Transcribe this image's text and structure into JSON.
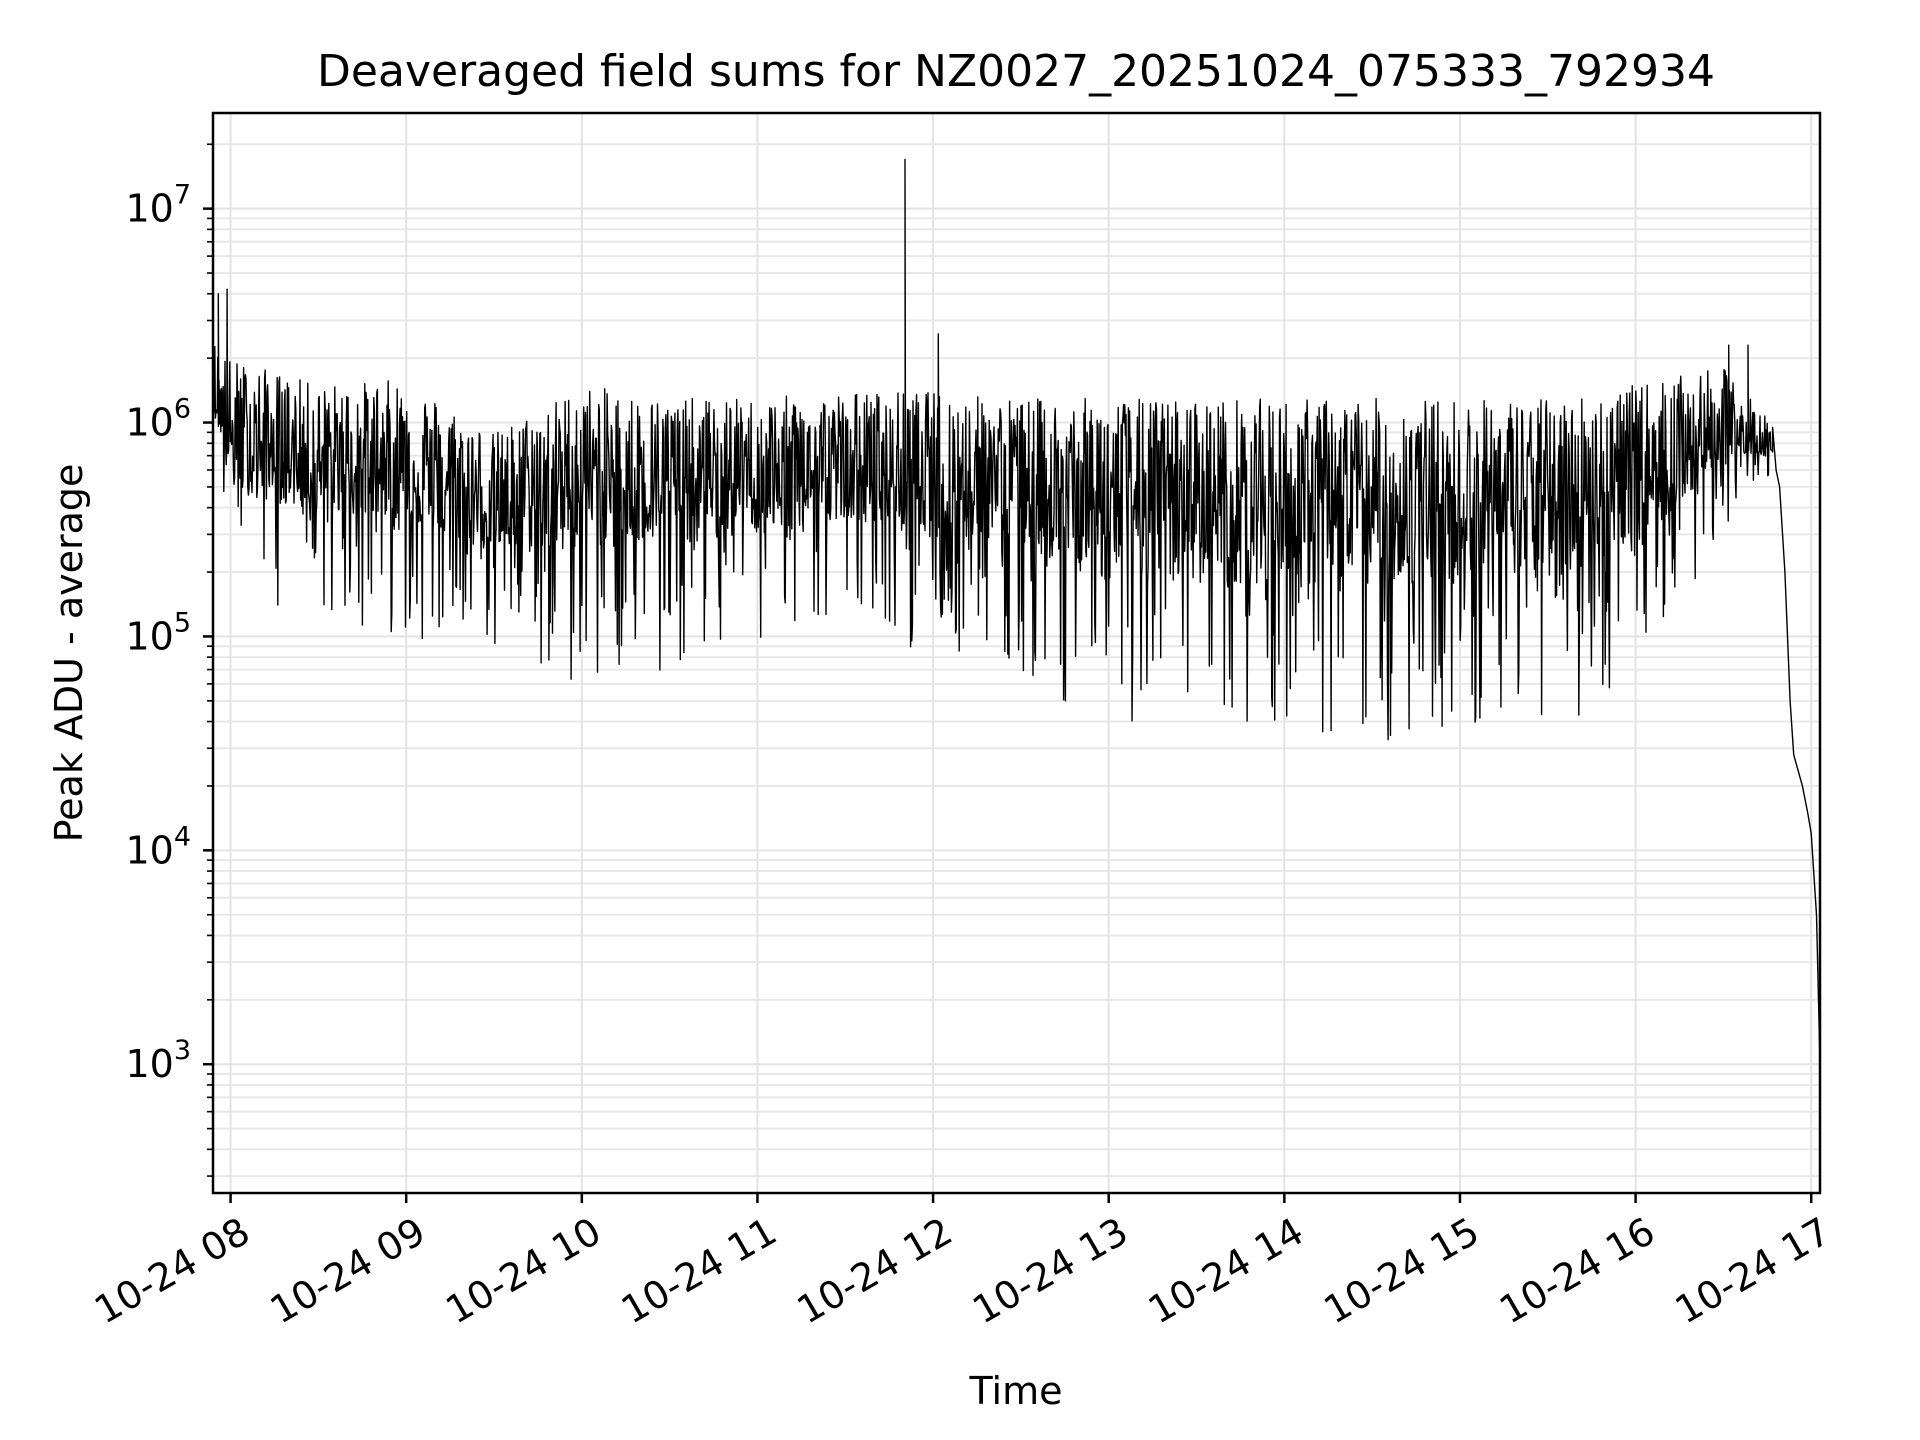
{
  "chart_data": {
    "type": "line",
    "title": "Deaveraged field sums for NZ0027_20251024_075333_792934",
    "xlabel": "Time",
    "ylabel": "Peak ADU - average",
    "yscale": "log",
    "ylim": [
      250,
      28000000
    ],
    "xlim_hours": [
      7.9,
      17.05
    ],
    "grid": "on",
    "x_ticks": [
      {
        "hour": 8,
        "label": "10-24 08"
      },
      {
        "hour": 9,
        "label": "10-24 09"
      },
      {
        "hour": 10,
        "label": "10-24 10"
      },
      {
        "hour": 11,
        "label": "10-24 11"
      },
      {
        "hour": 12,
        "label": "10-24 12"
      },
      {
        "hour": 13,
        "label": "10-24 13"
      },
      {
        "hour": 14,
        "label": "10-24 14"
      },
      {
        "hour": 15,
        "label": "10-24 15"
      },
      {
        "hour": 16,
        "label": "10-24 16"
      },
      {
        "hour": 17,
        "label": "10-24 17"
      }
    ],
    "y_ticks": [
      {
        "value": 1000,
        "base": "10",
        "exp": "3"
      },
      {
        "value": 10000,
        "base": "10",
        "exp": "4"
      },
      {
        "value": 100000,
        "base": "10",
        "exp": "5"
      },
      {
        "value": 1000000,
        "base": "10",
        "exp": "6"
      },
      {
        "value": 10000000,
        "base": "10",
        "exp": "7"
      }
    ],
    "series": [
      {
        "name": "Peak ADU - average",
        "color": "#000000",
        "envelope": [
          {
            "h": 7.9,
            "hi": 2500000,
            "lo": 600000
          },
          {
            "h": 8.0,
            "hi": 2000000,
            "lo": 150000
          },
          {
            "h": 8.5,
            "hi": 1500000,
            "lo": 120000
          },
          {
            "h": 9.0,
            "hi": 1600000,
            "lo": 100000
          },
          {
            "h": 9.5,
            "hi": 900000,
            "lo": 80000
          },
          {
            "h": 10.0,
            "hi": 1500000,
            "lo": 60000
          },
          {
            "h": 10.5,
            "hi": 1300000,
            "lo": 70000
          },
          {
            "h": 11.0,
            "hi": 1300000,
            "lo": 90000
          },
          {
            "h": 11.5,
            "hi": 1400000,
            "lo": 120000
          },
          {
            "h": 12.0,
            "hi": 1400000,
            "lo": 80000
          },
          {
            "h": 12.5,
            "hi": 1300000,
            "lo": 70000
          },
          {
            "h": 13.0,
            "hi": 1300000,
            "lo": 35000
          },
          {
            "h": 13.5,
            "hi": 1300000,
            "lo": 35000
          },
          {
            "h": 14.0,
            "hi": 1300000,
            "lo": 35000
          },
          {
            "h": 14.5,
            "hi": 1300000,
            "lo": 30000
          },
          {
            "h": 15.0,
            "hi": 1300000,
            "lo": 35000
          },
          {
            "h": 15.5,
            "hi": 1300000,
            "lo": 35000
          },
          {
            "h": 16.0,
            "hi": 1500000,
            "lo": 60000
          },
          {
            "h": 16.5,
            "hi": 1800000,
            "lo": 300000
          },
          {
            "h": 16.78,
            "hi": 1000000,
            "lo": 600000
          }
        ],
        "spikes": [
          {
            "h": 7.93,
            "v": 4000000
          },
          {
            "h": 7.98,
            "v": 4200000
          },
          {
            "h": 11.84,
            "v": 17000000
          },
          {
            "h": 12.03,
            "v": 2600000
          },
          {
            "h": 16.53,
            "v": 2300000
          },
          {
            "h": 16.64,
            "v": 2300000
          }
        ],
        "tail": [
          {
            "h": 16.78,
            "v": 950000
          },
          {
            "h": 16.8,
            "v": 600000
          },
          {
            "h": 16.82,
            "v": 500000
          },
          {
            "h": 16.85,
            "v": 200000
          },
          {
            "h": 16.88,
            "v": 50000
          },
          {
            "h": 16.9,
            "v": 28000
          },
          {
            "h": 16.95,
            "v": 20000
          },
          {
            "h": 16.98,
            "v": 15000
          },
          {
            "h": 17.0,
            "v": 12000
          },
          {
            "h": 17.03,
            "v": 5000
          },
          {
            "h": 17.05,
            "v": 1000
          }
        ]
      }
    ]
  }
}
